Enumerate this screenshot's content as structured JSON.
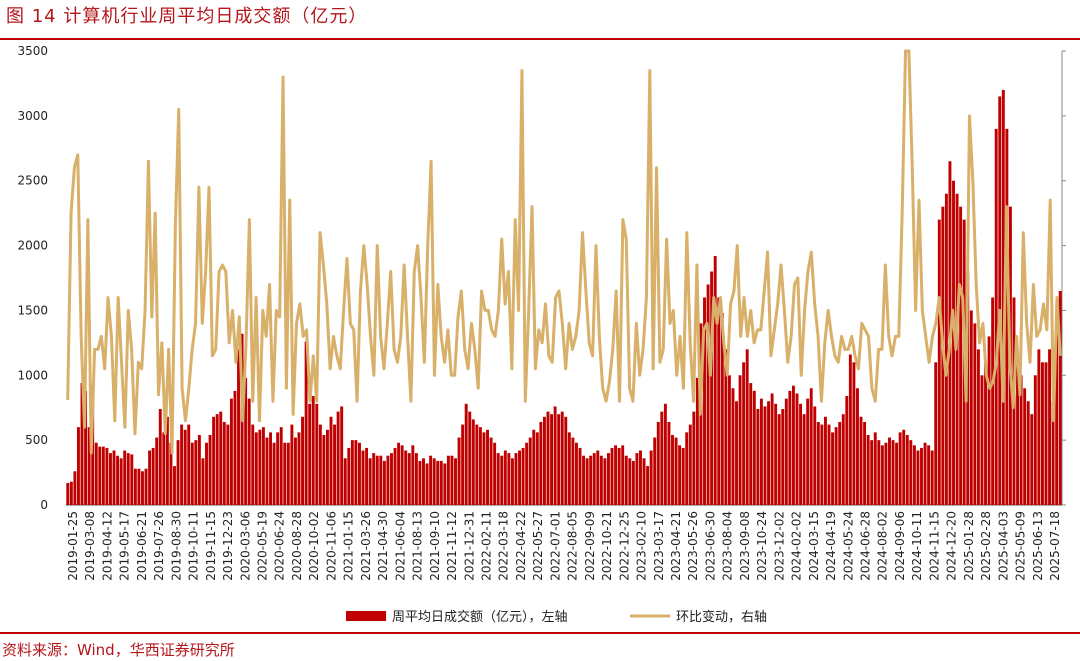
{
  "header": {
    "title": "图 14   计算机行业周平均日成交额（亿元）"
  },
  "footer": {
    "source": "资料来源：Wind，华西证券研究所"
  },
  "chart_data": {
    "type": "bar",
    "title": "计算机行业周平均日成交额（亿元）",
    "y_left": {
      "ylim": [
        0,
        3500
      ],
      "ticks": [
        0,
        500,
        1000,
        1500,
        2000,
        2500,
        3000,
        3500
      ]
    },
    "y_right": {
      "ylim": [
        0,
        7
      ],
      "tick_labels_visible": false
    },
    "x_tick_labels": [
      "2019-01-25",
      "2019-03-08",
      "2019-04-12",
      "2019-05-17",
      "2019-06-21",
      "2019-07-26",
      "2019-08-30",
      "2019-10-11",
      "2019-11-15",
      "2019-12-23",
      "2020-03-06",
      "2020-05-19",
      "2020-06-24",
      "2020-08-28",
      "2020-10-02",
      "2020-11-06",
      "2021-01-15",
      "2021-03-26",
      "2021-04-30",
      "2021-06-04",
      "2021-08-13",
      "2021-09-10",
      "2021-11-12",
      "2021-12-31",
      "2022-02-11",
      "2022-03-18",
      "2022-04-22",
      "2022-05-27",
      "2022-07-01",
      "2022-08-05",
      "2022-09-09",
      "2022-10-21",
      "2022-12-25",
      "2023-02-10",
      "2023-03-17",
      "2023-04-21",
      "2023-05-26",
      "2023-06-30",
      "2023-08-04",
      "2023-09-08",
      "2023-10-24",
      "2023-12-02",
      "2024-02-02",
      "2024-03-15",
      "2024-04-19",
      "2024-05-24",
      "2024-06-28",
      "2024-08-02",
      "2024-09-06",
      "2024-10-11",
      "2024-11-15",
      "2024-12-20",
      "2025-01-28",
      "2025-02-28",
      "2025-04-03",
      "2025-05-09",
      "2025-06-13",
      "2025-07-18"
    ],
    "legend_position": "bottom",
    "grid": false,
    "colors": {
      "bar": "#c00000",
      "line": "#d8b06a",
      "rule": "#c00000"
    },
    "series": [
      {
        "name": "周平均日成交额（亿元），左轴",
        "type": "bar",
        "axis": "left",
        "values": [
          170,
          180,
          260,
          600,
          940,
          880,
          600,
          920,
          480,
          450,
          450,
          440,
          400,
          420,
          380,
          360,
          420,
          400,
          390,
          280,
          280,
          260,
          280,
          420,
          440,
          520,
          740,
          560,
          680,
          480,
          300,
          500,
          620,
          580,
          620,
          480,
          500,
          540,
          360,
          480,
          540,
          680,
          700,
          720,
          640,
          620,
          820,
          880,
          1200,
          1320,
          980,
          820,
          620,
          560,
          580,
          600,
          520,
          560,
          480,
          560,
          600,
          480,
          480,
          620,
          520,
          560,
          680,
          1260,
          780,
          840,
          780,
          620,
          540,
          580,
          680,
          620,
          720,
          760,
          360,
          440,
          500,
          500,
          480,
          420,
          440,
          360,
          400,
          380,
          380,
          340,
          380,
          400,
          440,
          480,
          460,
          420,
          400,
          460,
          400,
          340,
          360,
          320,
          380,
          360,
          340,
          340,
          320,
          380,
          380,
          360,
          520,
          620,
          780,
          720,
          660,
          620,
          600,
          560,
          580,
          520,
          480,
          400,
          380,
          420,
          400,
          360,
          400,
          420,
          440,
          480,
          520,
          580,
          560,
          640,
          680,
          720,
          700,
          760,
          700,
          720,
          680,
          560,
          520,
          480,
          440,
          380,
          360,
          380,
          400,
          420,
          380,
          360,
          400,
          440,
          460,
          440,
          460,
          380,
          360,
          340,
          400,
          420,
          360,
          300,
          420,
          520,
          640,
          720,
          780,
          640,
          540,
          520,
          460,
          440,
          560,
          620,
          720,
          980,
          1400,
          1600,
          1700,
          1800,
          1920,
          1600,
          1480,
          1200,
          1000,
          900,
          800,
          1000,
          1100,
          1200,
          940,
          880,
          740,
          820,
          760,
          800,
          860,
          780,
          700,
          740,
          820,
          880,
          920,
          860,
          780,
          700,
          820,
          900,
          760,
          640,
          620,
          680,
          620,
          560,
          600,
          640,
          700,
          840,
          1160,
          1100,
          900,
          680,
          640,
          540,
          500,
          560,
          500,
          460,
          480,
          520,
          500,
          480,
          560,
          580,
          540,
          500,
          460,
          420,
          440,
          480,
          460,
          420,
          1100,
          2200,
          2300,
          2400,
          2650,
          2500,
          2400,
          2300,
          2200,
          1800,
          1500,
          1400,
          1200,
          1000,
          1100,
          1300,
          1600,
          2900,
          3150,
          3200,
          2900,
          2300,
          1600,
          1100,
          1000,
          900,
          800,
          700,
          1000,
          1200,
          1100,
          1100,
          1200,
          800,
          1400,
          1650
        ]
      },
      {
        "name": "环比变动，右轴",
        "type": "line",
        "axis": "right",
        "values": [
          1.62,
          4.5,
          5.2,
          5.4,
          2.6,
          1.2,
          4.4,
          0.8,
          2.4,
          2.4,
          2.6,
          2.1,
          3.2,
          2.6,
          1.3,
          3.2,
          2.2,
          1.2,
          3.0,
          2.4,
          1.1,
          2.2,
          2.1,
          3.0,
          5.3,
          2.9,
          4.5,
          1.7,
          2.5,
          1.1,
          2.4,
          0.8,
          4.3,
          6.1,
          1.8,
          1.3,
          1.8,
          2.4,
          2.8,
          4.9,
          2.8,
          3.6,
          4.9,
          2.3,
          2.4,
          3.6,
          3.7,
          3.6,
          2.5,
          3.0,
          2.2,
          2.9,
          1.3,
          2.5,
          4.4,
          1.6,
          3.2,
          1.3,
          3.0,
          2.6,
          3.4,
          1.6,
          3.0,
          2.9,
          6.6,
          1.8,
          4.7,
          1.4,
          2.8,
          3.1,
          2.6,
          2.7,
          1.6,
          2.3,
          1.6,
          4.2,
          3.7,
          3.1,
          2.1,
          2.6,
          2.3,
          2.1,
          3.0,
          3.8,
          2.8,
          2.7,
          1.6,
          3.3,
          4.0,
          3.4,
          2.6,
          2.0,
          4.0,
          2.6,
          2.1,
          2.8,
          3.6,
          2.4,
          2.2,
          2.6,
          3.7,
          2.6,
          1.6,
          3.6,
          4.0,
          3.2,
          2.2,
          4.0,
          5.3,
          2.0,
          3.4,
          2.6,
          2.2,
          2.7,
          2.0,
          2.0,
          2.9,
          3.3,
          2.4,
          2.1,
          2.8,
          2.4,
          1.8,
          3.3,
          3.0,
          3.0,
          2.7,
          2.6,
          3.0,
          4.1,
          3.1,
          3.6,
          2.1,
          4.4,
          3.0,
          6.7,
          1.6,
          3.0,
          4.6,
          2.1,
          2.7,
          2.5,
          3.1,
          2.3,
          2.2,
          3.2,
          3.3,
          2.8,
          2.1,
          2.8,
          2.4,
          2.6,
          3.0,
          4.2,
          3.3,
          2.5,
          2.3,
          4.0,
          2.6,
          1.8,
          1.6,
          1.9,
          2.4,
          3.3,
          1.6,
          4.4,
          4.1,
          1.8,
          1.6,
          2.8,
          2.0,
          2.4,
          3.2,
          6.7,
          2.1,
          5.2,
          2.2,
          2.4,
          4.1,
          2.8,
          3.0,
          2.0,
          2.6,
          1.8,
          4.2,
          2.5,
          1.6,
          3.7,
          1.4,
          2.7,
          2.8,
          2.0,
          3.2,
          2.8,
          3.2,
          2.5,
          2.0,
          3.1,
          3.3,
          4.0,
          2.6,
          3.2,
          2.6,
          3.0,
          2.5,
          2.7,
          2.7,
          3.3,
          3.9,
          2.3,
          2.7,
          3.1,
          3.7,
          3.0,
          2.2,
          2.6,
          3.4,
          3.5,
          2.0,
          3.0,
          3.6,
          3.9,
          3.1,
          2.6,
          1.6,
          2.5,
          3.0,
          2.6,
          2.3,
          2.2,
          2.6,
          2.4,
          2.4,
          2.6,
          2.3,
          2.1,
          2.8,
          2.7,
          2.6,
          1.8,
          1.6,
          2.4,
          2.4,
          3.7,
          2.6,
          2.3,
          2.6,
          2.6,
          4.5,
          7.0,
          7.0,
          5.2,
          3.0,
          4.7,
          3.0,
          2.6,
          2.2,
          2.6,
          2.8,
          3.2,
          2.5,
          2.0,
          2.4,
          3.0,
          2.4,
          3.4,
          3.2,
          1.6,
          6.0,
          5.0,
          3.4,
          2.5,
          2.8,
          2.0,
          1.8,
          1.9,
          2.2,
          3.0,
          1.6,
          4.6,
          2.2,
          1.5,
          2.6,
          1.7,
          4.2,
          2.8,
          2.2,
          3.4,
          2.6,
          2.7,
          3.1,
          2.7,
          4.7,
          1.3,
          3.2,
          2.3
        ]
      }
    ]
  }
}
